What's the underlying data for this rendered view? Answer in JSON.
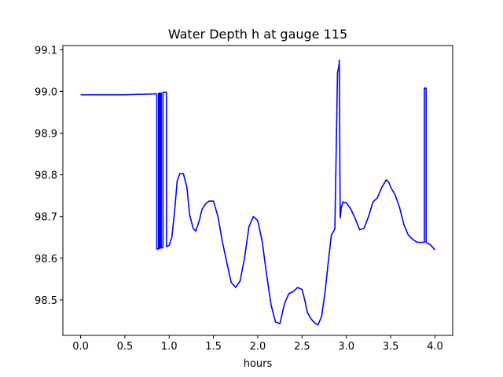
{
  "chart_data": {
    "type": "line",
    "title": "Water Depth h at gauge 115",
    "xlabel": "hours",
    "ylabel": "",
    "xlim": [
      -0.2,
      4.2
    ],
    "ylim": [
      98.415,
      99.11
    ],
    "x_ticks": [
      0.0,
      0.5,
      1.0,
      1.5,
      2.0,
      2.5,
      3.0,
      3.5,
      4.0
    ],
    "x_tick_labels": [
      "0.0",
      "0.5",
      "1.0",
      "1.5",
      "2.0",
      "2.5",
      "3.0",
      "3.5",
      "4.0"
    ],
    "y_ticks": [
      98.5,
      98.6,
      98.7,
      98.8,
      98.9,
      99.0,
      99.1
    ],
    "y_tick_labels": [
      "98.5",
      "98.6",
      "98.7",
      "98.8",
      "98.9",
      "99.0",
      "99.1"
    ],
    "grid": false,
    "series": [
      {
        "color": "#0000ff",
        "x": [
          0.0,
          0.5,
          0.85,
          0.86,
          0.86,
          0.88,
          0.88,
          0.89,
          0.89,
          0.9,
          0.9,
          0.91,
          0.91,
          0.93,
          0.93,
          0.97,
          0.97,
          0.98,
          0.98,
          1.0,
          1.03,
          1.06,
          1.09,
          1.12,
          1.16,
          1.2,
          1.23,
          1.27,
          1.3,
          1.34,
          1.37,
          1.41,
          1.45,
          1.5,
          1.55,
          1.6,
          1.65,
          1.7,
          1.75,
          1.8,
          1.85,
          1.9,
          1.95,
          2.0,
          2.05,
          2.1,
          2.15,
          2.2,
          2.25,
          2.3,
          2.35,
          2.4,
          2.45,
          2.5,
          2.53,
          2.56,
          2.6,
          2.64,
          2.68,
          2.72,
          2.76,
          2.79,
          2.83,
          2.87,
          2.9,
          2.91,
          2.92,
          2.92,
          2.93,
          2.93,
          2.94,
          2.94,
          2.95,
          2.95,
          2.96,
          2.96,
          3.0,
          3.05,
          3.1,
          3.15,
          3.2,
          3.25,
          3.3,
          3.35,
          3.4,
          3.45,
          3.48,
          3.5,
          3.55,
          3.6,
          3.65,
          3.7,
          3.75,
          3.8,
          3.88,
          3.88,
          3.9,
          3.9,
          3.95,
          4.0
        ],
        "y": [
          98.992,
          98.992,
          98.994,
          98.994,
          98.622,
          98.622,
          98.996,
          98.996,
          98.624,
          98.624,
          98.996,
          98.996,
          98.625,
          98.625,
          98.998,
          98.998,
          98.628,
          98.628,
          98.629,
          98.631,
          98.65,
          98.71,
          98.785,
          98.803,
          98.803,
          98.77,
          98.705,
          98.672,
          98.665,
          98.69,
          98.717,
          98.73,
          98.737,
          98.737,
          98.7,
          98.64,
          98.59,
          98.542,
          98.53,
          98.545,
          98.6,
          98.675,
          98.7,
          98.69,
          98.64,
          98.56,
          98.488,
          98.447,
          98.443,
          98.49,
          98.515,
          98.52,
          98.53,
          98.525,
          98.5,
          98.47,
          98.455,
          98.445,
          98.44,
          98.46,
          98.52,
          98.58,
          98.655,
          98.67,
          99.045,
          99.055,
          99.068,
          99.075,
          98.697,
          98.697,
          98.715,
          98.72,
          98.726,
          98.728,
          98.732,
          98.735,
          98.733,
          98.718,
          98.695,
          98.668,
          98.672,
          98.7,
          98.735,
          98.745,
          98.77,
          98.788,
          98.782,
          98.77,
          98.752,
          98.722,
          98.68,
          98.655,
          98.645,
          98.638,
          98.638,
          99.008,
          99.008,
          98.638,
          98.632,
          98.62
        ]
      }
    ]
  }
}
